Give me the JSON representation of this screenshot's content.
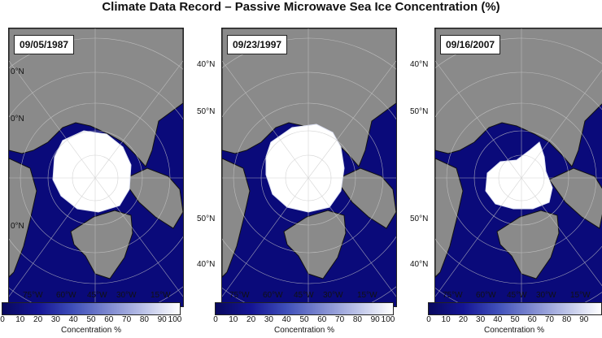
{
  "title": "Climate Data Record – Passive Microwave Sea Ice Concentration (%)",
  "colors": {
    "ocean": "#0a0a7a",
    "land": "#8a8a8a",
    "ice": "#ffffff",
    "graticule": "#c8c8c8",
    "coast": "#111111"
  },
  "panels": [
    {
      "date": "09/05/1987",
      "lat_labels": [
        "0°N",
        "0°N",
        "0°N"
      ],
      "lon_labels": [
        "75°W",
        "60°W",
        "45°W",
        "30°W",
        "15°W"
      ]
    },
    {
      "date": "09/23/1997",
      "lat_labels": [
        "40°N",
        "50°N",
        "50°N",
        "40°N"
      ],
      "lon_labels": [
        "75°W",
        "60°W",
        "45°W",
        "30°W",
        "15°W"
      ]
    },
    {
      "date": "09/16/2007",
      "lat_labels": [
        "40°N",
        "50°N",
        "50°N",
        "40°N"
      ],
      "lon_labels": [
        "75°W",
        "60°W",
        "45°W",
        "30°W",
        "15°W"
      ]
    }
  ],
  "colorbar": {
    "ticks": [
      "0",
      "10",
      "20",
      "30",
      "40",
      "50",
      "60",
      "70",
      "80",
      "90",
      "100"
    ],
    "label": "Concentration %"
  }
}
